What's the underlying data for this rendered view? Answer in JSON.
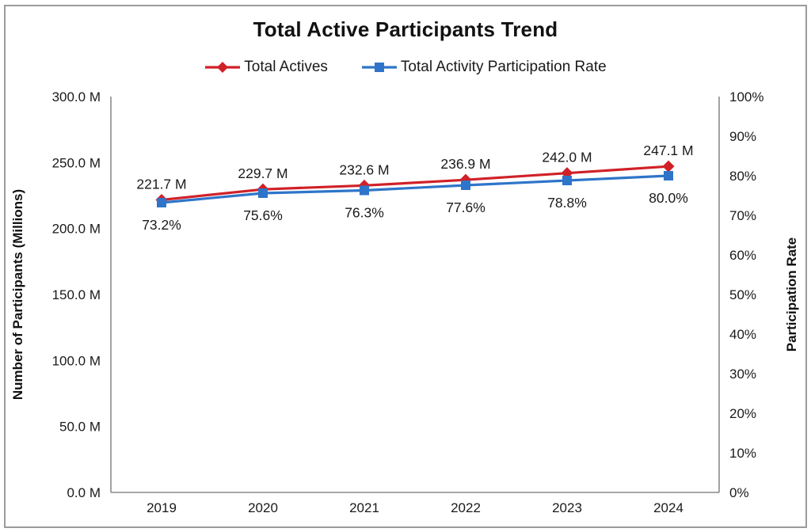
{
  "chart_data": {
    "type": "line",
    "title": "Total Active Participants Trend",
    "categories": [
      "2019",
      "2020",
      "2021",
      "2022",
      "2023",
      "2024"
    ],
    "series": [
      {
        "name": "Total Actives",
        "axis": "left",
        "color": "#d02128",
        "marker": "diamond",
        "values": [
          221.7,
          229.7,
          232.6,
          236.9,
          242.0,
          247.1
        ],
        "labels": [
          "221.7 M",
          "229.7 M",
          "232.6 M",
          "236.9 M",
          "242.0 M",
          "247.1 M"
        ],
        "label_position": "above"
      },
      {
        "name": "Total Activity Participation Rate",
        "axis": "right",
        "color": "#2e75c9",
        "marker": "square",
        "values": [
          73.2,
          75.6,
          76.3,
          77.6,
          78.8,
          80.0
        ],
        "labels": [
          "73.2%",
          "75.6%",
          "76.3%",
          "77.6%",
          "78.8%",
          "80.0%"
        ],
        "label_position": "below"
      }
    ],
    "left_axis": {
      "title": "Number of Participants (Millions)",
      "min": 0,
      "max": 300,
      "tick_values": [
        0,
        50,
        100,
        150,
        200,
        250,
        300
      ],
      "tick_labels": [
        "0.0 M",
        "50.0 M",
        "100.0 M",
        "150.0 M",
        "200.0 M",
        "250.0 M",
        "300.0 M"
      ]
    },
    "right_axis": {
      "title": "Participation Rate",
      "min": 0,
      "max": 100,
      "tick_values": [
        0,
        10,
        20,
        30,
        40,
        50,
        60,
        70,
        80,
        90,
        100
      ],
      "tick_labels": [
        "0%",
        "10%",
        "20%",
        "30%",
        "40%",
        "50%",
        "60%",
        "70%",
        "80%",
        "90%",
        "100%"
      ]
    },
    "legend_position": "top",
    "grid": false,
    "axis_line_color": "#8a8a8a",
    "text_color": "#1a1a1a"
  }
}
